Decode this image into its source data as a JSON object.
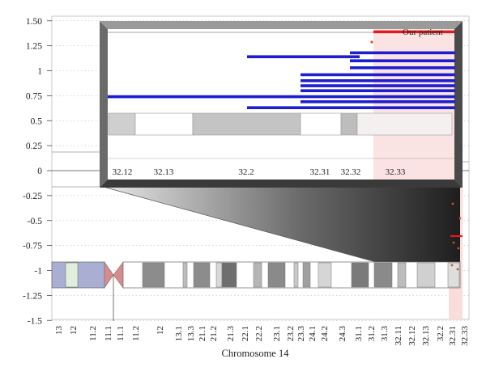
{
  "chart_data": {
    "type": "custom",
    "xlabel": "Chromosome 14",
    "ylim": [
      -1.5,
      1.5
    ],
    "y_ticks": [
      "1.50",
      "1.25",
      "1",
      "0.75",
      "0.5",
      "0.25",
      "0",
      "-0.25",
      "-0.5",
      "-0.75",
      "-1",
      "-1.25",
      "-1.5"
    ],
    "y_tick_values": [
      1.5,
      1.25,
      1,
      0.75,
      0.5,
      0.25,
      0,
      -0.25,
      -0.5,
      -0.75,
      -1,
      -1.25,
      -1.5
    ],
    "grid": "dotted horizontal",
    "bands": [
      "13",
      "12",
      "11.2",
      "11.1",
      "11.1",
      "11.2",
      "12",
      "13.1",
      "13.3",
      "21.1",
      "21.2",
      "21.3",
      "22.1",
      "22.2",
      "23.1",
      "23.2",
      "23.3",
      "24.1",
      "24.2",
      "24.3",
      "31.1",
      "31.2",
      "31.3",
      "32.11",
      "32.12",
      "32.13",
      "32.2",
      "32.31",
      "32.33"
    ],
    "zoom_bands": [
      "32.12",
      "32.13",
      "32.2",
      "32.31",
      "32.32",
      "32.33"
    ],
    "patient_label": "Our patient",
    "patient_segment": {
      "y": 1.39
    },
    "segments": [
      {
        "y": 1.14
      },
      {
        "y": 1.18
      },
      {
        "y": 1.1
      },
      {
        "y": 1.03
      },
      {
        "y": 0.96
      },
      {
        "y": 0.9
      },
      {
        "y": 0.85
      },
      {
        "y": 0.8
      },
      {
        "y": 0.74
      },
      {
        "y": 0.69
      },
      {
        "y": 0.63
      }
    ],
    "colors": {
      "gain": "#1d1fcf",
      "patient": "#e31a1a",
      "highlight": "#f9dcdc",
      "acen": "#d98a8a",
      "pband": "#a9aed2"
    }
  }
}
